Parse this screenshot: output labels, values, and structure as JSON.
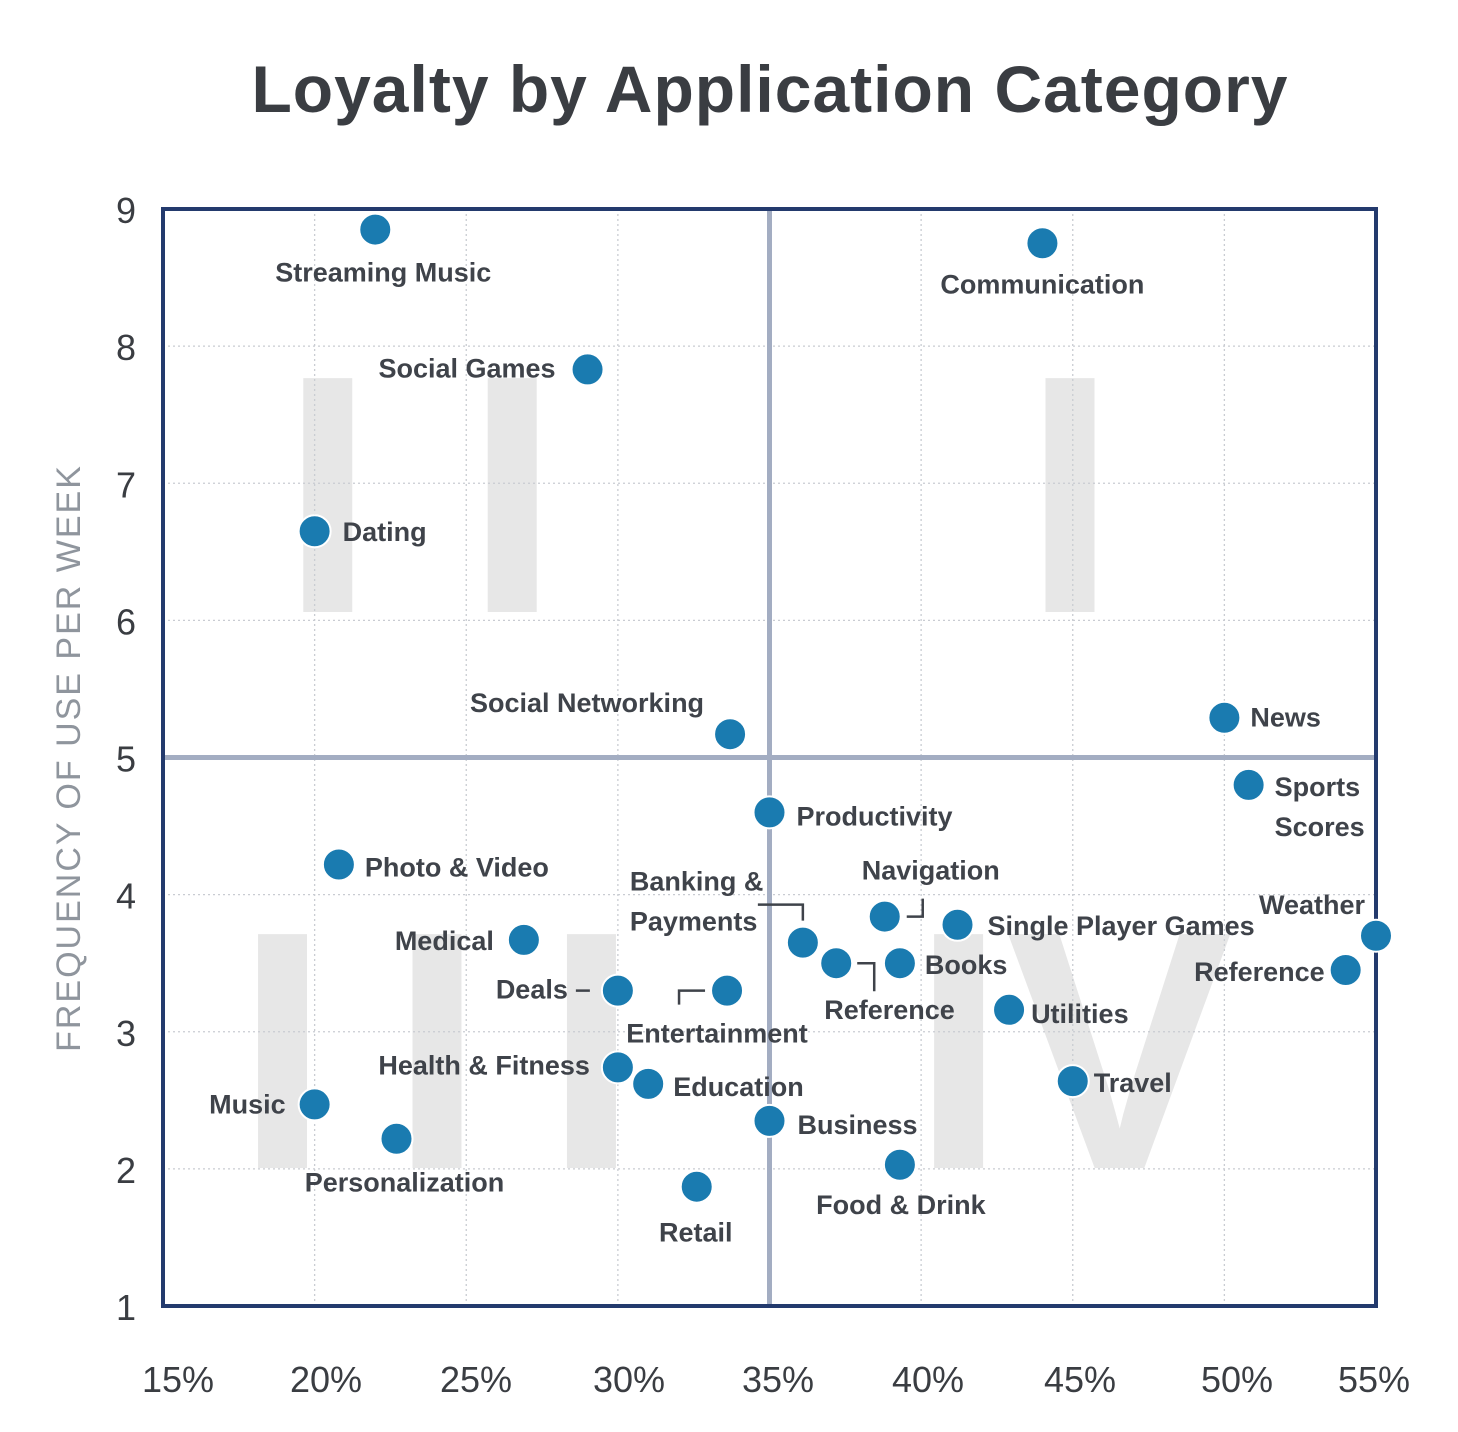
{
  "chart_data": {
    "type": "scatter",
    "title": "Loyalty by Application Category",
    "xlabel": "",
    "ylabel": "FREQUENCY OF USE PER WEEK",
    "xlim": [
      15,
      55
    ],
    "ylim": [
      1,
      9
    ],
    "x_ticks": [
      "15%",
      "20%",
      "25%",
      "30%",
      "35%",
      "40%",
      "45%",
      "50%",
      "55%"
    ],
    "y_ticks": [
      "1",
      "2",
      "3",
      "4",
      "5",
      "6",
      "7",
      "8",
      "9"
    ],
    "grid": true,
    "divider": {
      "x": 35,
      "y": 5
    },
    "quadrant_labels": [
      "I",
      "II",
      "III",
      "IV"
    ],
    "point_color": "#1a7bb0",
    "points": [
      {
        "label": "Streaming Music",
        "x": 22,
        "y": 8.85
      },
      {
        "label": "Communication",
        "x": 44,
        "y": 8.75
      },
      {
        "label": "Social Games",
        "x": 29,
        "y": 7.83
      },
      {
        "label": "Dating",
        "x": 20,
        "y": 6.65
      },
      {
        "label": "Social Networking",
        "x": 33.7,
        "y": 5.17
      },
      {
        "label": "News",
        "x": 50,
        "y": 5.29
      },
      {
        "label": "Sports Scores",
        "x": 50.8,
        "y": 4.8
      },
      {
        "label": "Productivity",
        "x": 35,
        "y": 4.6
      },
      {
        "label": "Photo & Video",
        "x": 20.8,
        "y": 4.22
      },
      {
        "label": "Medical",
        "x": 26.9,
        "y": 3.67
      },
      {
        "label": "Banking & Payments",
        "x": 36.1,
        "y": 3.65
      },
      {
        "label": "Navigation",
        "x": 38.8,
        "y": 3.84
      },
      {
        "label": "Single Player Games",
        "x": 41.2,
        "y": 3.78
      },
      {
        "label": "Weather",
        "x": 55,
        "y": 3.7
      },
      {
        "label": "Books",
        "x": 39.3,
        "y": 3.5
      },
      {
        "label": "Reference",
        "x": 37.2,
        "y": 3.5
      },
      {
        "label": "Reference",
        "x": 54,
        "y": 3.45
      },
      {
        "label": "Deals",
        "x": 30,
        "y": 3.3
      },
      {
        "label": "Entertainment",
        "x": 33.6,
        "y": 3.3
      },
      {
        "label": "Utilities",
        "x": 42.9,
        "y": 3.16
      },
      {
        "label": "Health & Fitness",
        "x": 30,
        "y": 2.74
      },
      {
        "label": "Education",
        "x": 31,
        "y": 2.62
      },
      {
        "label": "Travel",
        "x": 45,
        "y": 2.64
      },
      {
        "label": "Music",
        "x": 20,
        "y": 2.47
      },
      {
        "label": "Business",
        "x": 35,
        "y": 2.35
      },
      {
        "label": "Personalization",
        "x": 22.7,
        "y": 2.22
      },
      {
        "label": "Food & Drink",
        "x": 39.3,
        "y": 2.03
      },
      {
        "label": "Retail",
        "x": 32.6,
        "y": 1.87
      }
    ]
  }
}
